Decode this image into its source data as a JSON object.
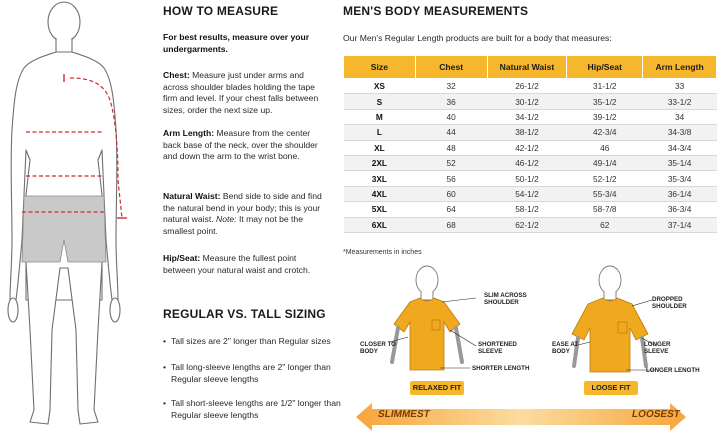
{
  "how_to_measure": {
    "title": "HOW TO MEASURE",
    "intro": "For best results, measure over your undergarments.",
    "items": [
      {
        "term": "Chest:",
        "text": "Measure just under arms and across shoulder blades holding the tape firm and level. If your chest falls between sizes, order the next size up."
      },
      {
        "term": "Arm Length:",
        "text": "Measure from the center back base of the neck, over the shoulder and down the arm to the wrist bone."
      },
      {
        "term": "Natural Waist:",
        "text": "Bend side to side and find the natural bend in your body; this is your natural waist.",
        "note_label": "Note:",
        "note": "It may not be the smallest point."
      },
      {
        "term": "Hip/Seat:",
        "text": "Measure the fullest point between your natural waist and crotch."
      }
    ]
  },
  "regular_vs_tall": {
    "title": "REGULAR VS. TALL SIZING",
    "bullets": [
      "Tall sizes are 2\" longer than Regular sizes",
      "Tall long-sleeve lengths are 2\" longer than Regular sleeve lengths",
      "Tall short-sleeve lengths are 1/2\" longer than Regular sleeve lengths"
    ]
  },
  "body_measurements": {
    "title": "MEN'S BODY MEASUREMENTS",
    "intro": "Our Men's Regular Length products are built for a body that measures:",
    "headers": [
      "Size",
      "Chest",
      "Natural Waist",
      "Hip/Seat",
      "Arm Length"
    ],
    "rows": [
      [
        "XS",
        "32",
        "26-1/2",
        "31-1/2",
        "33"
      ],
      [
        "S",
        "36",
        "30-1/2",
        "35-1/2",
        "33-1/2"
      ],
      [
        "M",
        "40",
        "34-1/2",
        "39-1/2",
        "34"
      ],
      [
        "L",
        "44",
        "38-1/2",
        "42-3/4",
        "34-3/8"
      ],
      [
        "XL",
        "48",
        "42-1/2",
        "46",
        "34-3/4"
      ],
      [
        "2XL",
        "52",
        "46-1/2",
        "49-1/4",
        "35-1/4"
      ],
      [
        "3XL",
        "56",
        "50-1/2",
        "52-1/2",
        "35-3/4"
      ],
      [
        "4XL",
        "60",
        "54-1/2",
        "55-3/4",
        "36-1/4"
      ],
      [
        "5XL",
        "64",
        "58-1/2",
        "58-7/8",
        "36-3/4"
      ],
      [
        "6XL",
        "68",
        "62-1/2",
        "62",
        "37-1/4"
      ]
    ],
    "footnote": "*Measurements in inches"
  },
  "fit_guide": {
    "relaxed": {
      "label": "RELAXED FIT",
      "slim_across": "SLIM ACROSS SHOULDER",
      "closer_to_body": "CLOSER TO BODY",
      "shortened_sleeve": "SHORTENED SLEEVE",
      "shorter_length": "SHORTER LENGTH"
    },
    "loose": {
      "label": "LOOSE FIT",
      "dropped_shoulder": "DROPPED SHOULDER",
      "ease_at_body": "EASE AT BODY",
      "longer_sleeve": "LONGER SLEEVE",
      "longer_length": "LONGER LENGTH"
    },
    "scale_left": "SLIMMEST",
    "scale_right": "LOOSEST"
  },
  "colors": {
    "accent": "#f6b72c",
    "shirt": "#f0a81e",
    "measure_line": "#d42a2a",
    "shorts": "#c9c9c9"
  }
}
